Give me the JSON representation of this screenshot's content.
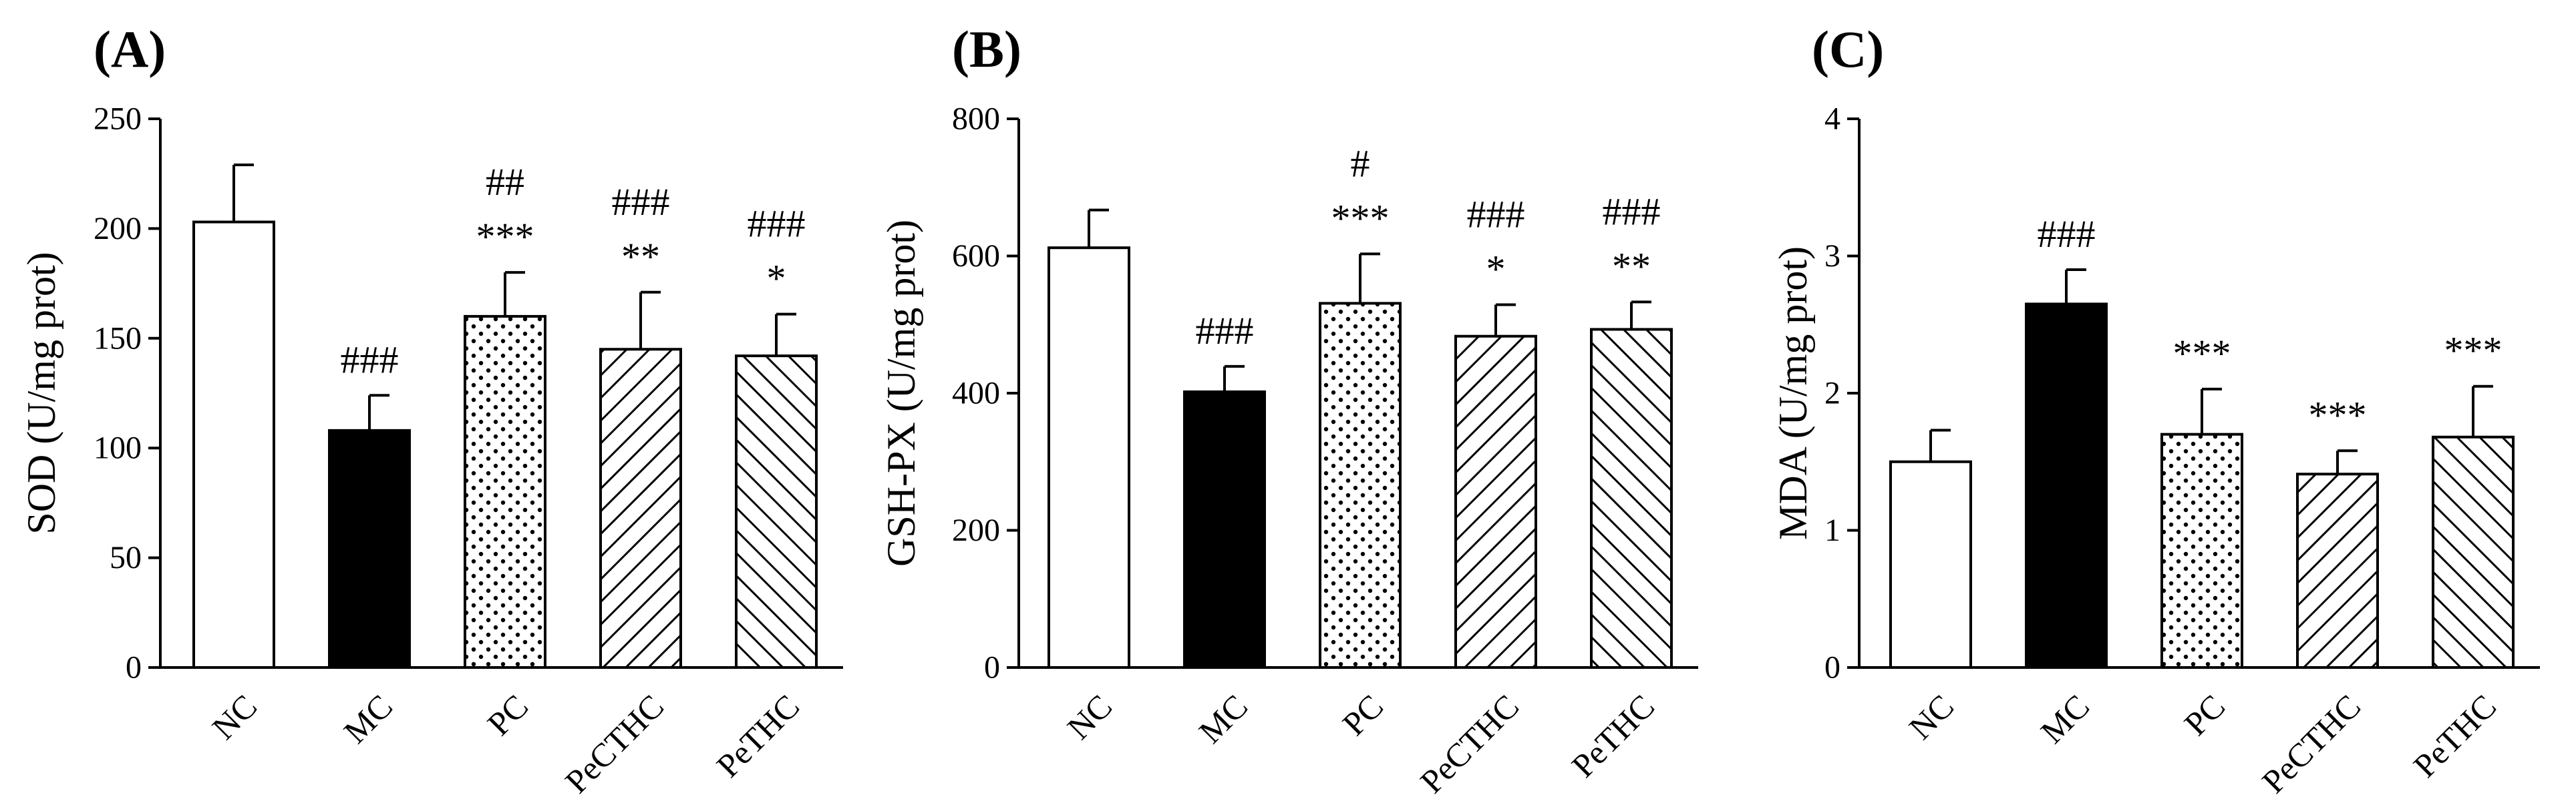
{
  "chart_data": [
    {
      "type": "bar",
      "panel_label": "(A)",
      "ylabel": "SOD (U/mg prot)",
      "ylim": [
        0,
        250
      ],
      "yticks": [
        0,
        50,
        100,
        150,
        200,
        250
      ],
      "ytick_labels": [
        "0",
        "50",
        "100",
        "150",
        "200",
        "250"
      ],
      "categories": [
        "NC",
        "MC",
        "PC",
        "PeCTHC",
        "PeTHC"
      ],
      "values": [
        203,
        108,
        160,
        145,
        142
      ],
      "errors": [
        26,
        16,
        20,
        26,
        19
      ],
      "fills": [
        "white",
        "black",
        "dots",
        "hatch-right",
        "hatch-left"
      ],
      "annotations": [
        [],
        [
          "###"
        ],
        [
          "***",
          "##"
        ],
        [
          "**",
          "###"
        ],
        [
          "*",
          "###"
        ]
      ]
    },
    {
      "type": "bar",
      "panel_label": "(B)",
      "ylabel": "GSH-PX (U/mg prot)",
      "ylim": [
        0,
        800
      ],
      "yticks": [
        0,
        200,
        400,
        600,
        800
      ],
      "ytick_labels": [
        "0",
        "200",
        "400",
        "600",
        "800"
      ],
      "categories": [
        "NC",
        "MC",
        "PC",
        "PeCTHC",
        "PeTHC"
      ],
      "values": [
        612,
        402,
        531,
        483,
        493
      ],
      "errors": [
        55,
        37,
        72,
        46,
        40
      ],
      "fills": [
        "white",
        "black",
        "dots",
        "hatch-right",
        "hatch-left"
      ],
      "annotations": [
        [],
        [
          "###"
        ],
        [
          "***",
          "#"
        ],
        [
          "*",
          "###"
        ],
        [
          "**",
          "###"
        ]
      ]
    },
    {
      "type": "bar",
      "panel_label": "(C)",
      "ylabel": "MDA (U/mg prot)",
      "ylim": [
        0,
        4
      ],
      "yticks": [
        0,
        1,
        2,
        3,
        4
      ],
      "ytick_labels": [
        "0",
        "1",
        "2",
        "3",
        "4"
      ],
      "categories": [
        "NC",
        "MC",
        "PC",
        "PeCTHC",
        "PeTHC"
      ],
      "values": [
        1.5,
        2.65,
        1.7,
        1.41,
        1.68
      ],
      "errors": [
        0.23,
        0.25,
        0.33,
        0.17,
        0.37
      ],
      "fills": [
        "white",
        "black",
        "dots",
        "hatch-right",
        "hatch-left"
      ],
      "annotations": [
        [],
        [
          "###"
        ],
        [
          "***"
        ],
        [
          "***"
        ],
        [
          "***"
        ]
      ]
    }
  ]
}
